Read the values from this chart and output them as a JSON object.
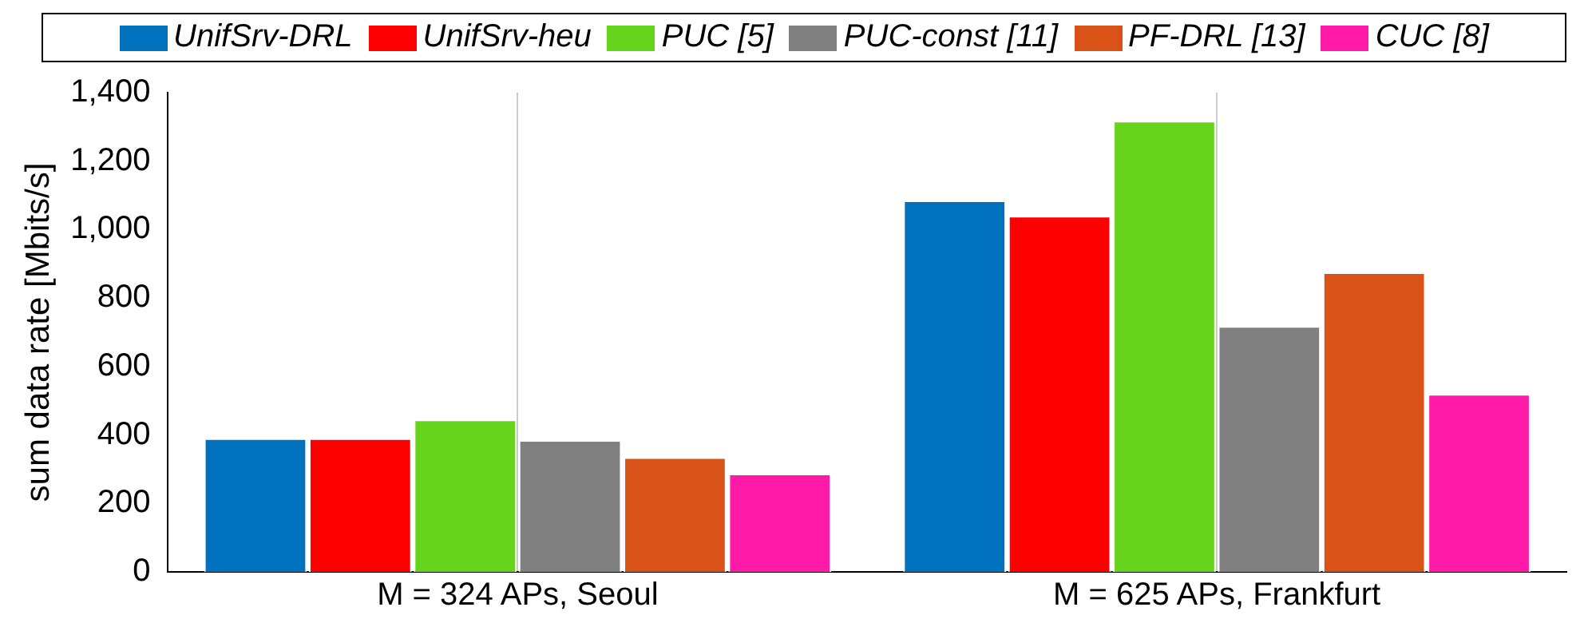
{
  "chart_data": {
    "type": "bar",
    "ylabel": "sum data rate [Mbits/s]",
    "categories": [
      "M = 324 APs, Seoul",
      "M = 625 APs, Frankfurt"
    ],
    "series": [
      {
        "name": "UnifSrv-DRL",
        "color": "#0072bd",
        "values": [
          390,
          1085
        ]
      },
      {
        "name": "UnifSrv-heu",
        "color": "#ff0000",
        "values": [
          390,
          1040
        ]
      },
      {
        "name": "PUC [5]",
        "color": "#66d41a",
        "values": [
          445,
          1318
        ]
      },
      {
        "name": "PUC-const [11]",
        "color": "#808080",
        "values": [
          385,
          718
        ]
      },
      {
        "name": "PF-DRL [13]",
        "color": "#d95319",
        "values": [
          335,
          875
        ]
      },
      {
        "name": "CUC [8]",
        "color": "#ff1aa8",
        "values": [
          287,
          520
        ]
      }
    ],
    "ylim": [
      0,
      1400
    ],
    "yticks": [
      {
        "value": 0,
        "label": "0"
      },
      {
        "value": 200,
        "label": "200"
      },
      {
        "value": 400,
        "label": "400"
      },
      {
        "value": 600,
        "label": "600"
      },
      {
        "value": 800,
        "label": "800"
      },
      {
        "value": 1000,
        "label": "1,000"
      },
      {
        "value": 1200,
        "label": "1,200"
      },
      {
        "value": 1400,
        "label": "1,400"
      }
    ],
    "grid": "x",
    "legend": "top"
  }
}
